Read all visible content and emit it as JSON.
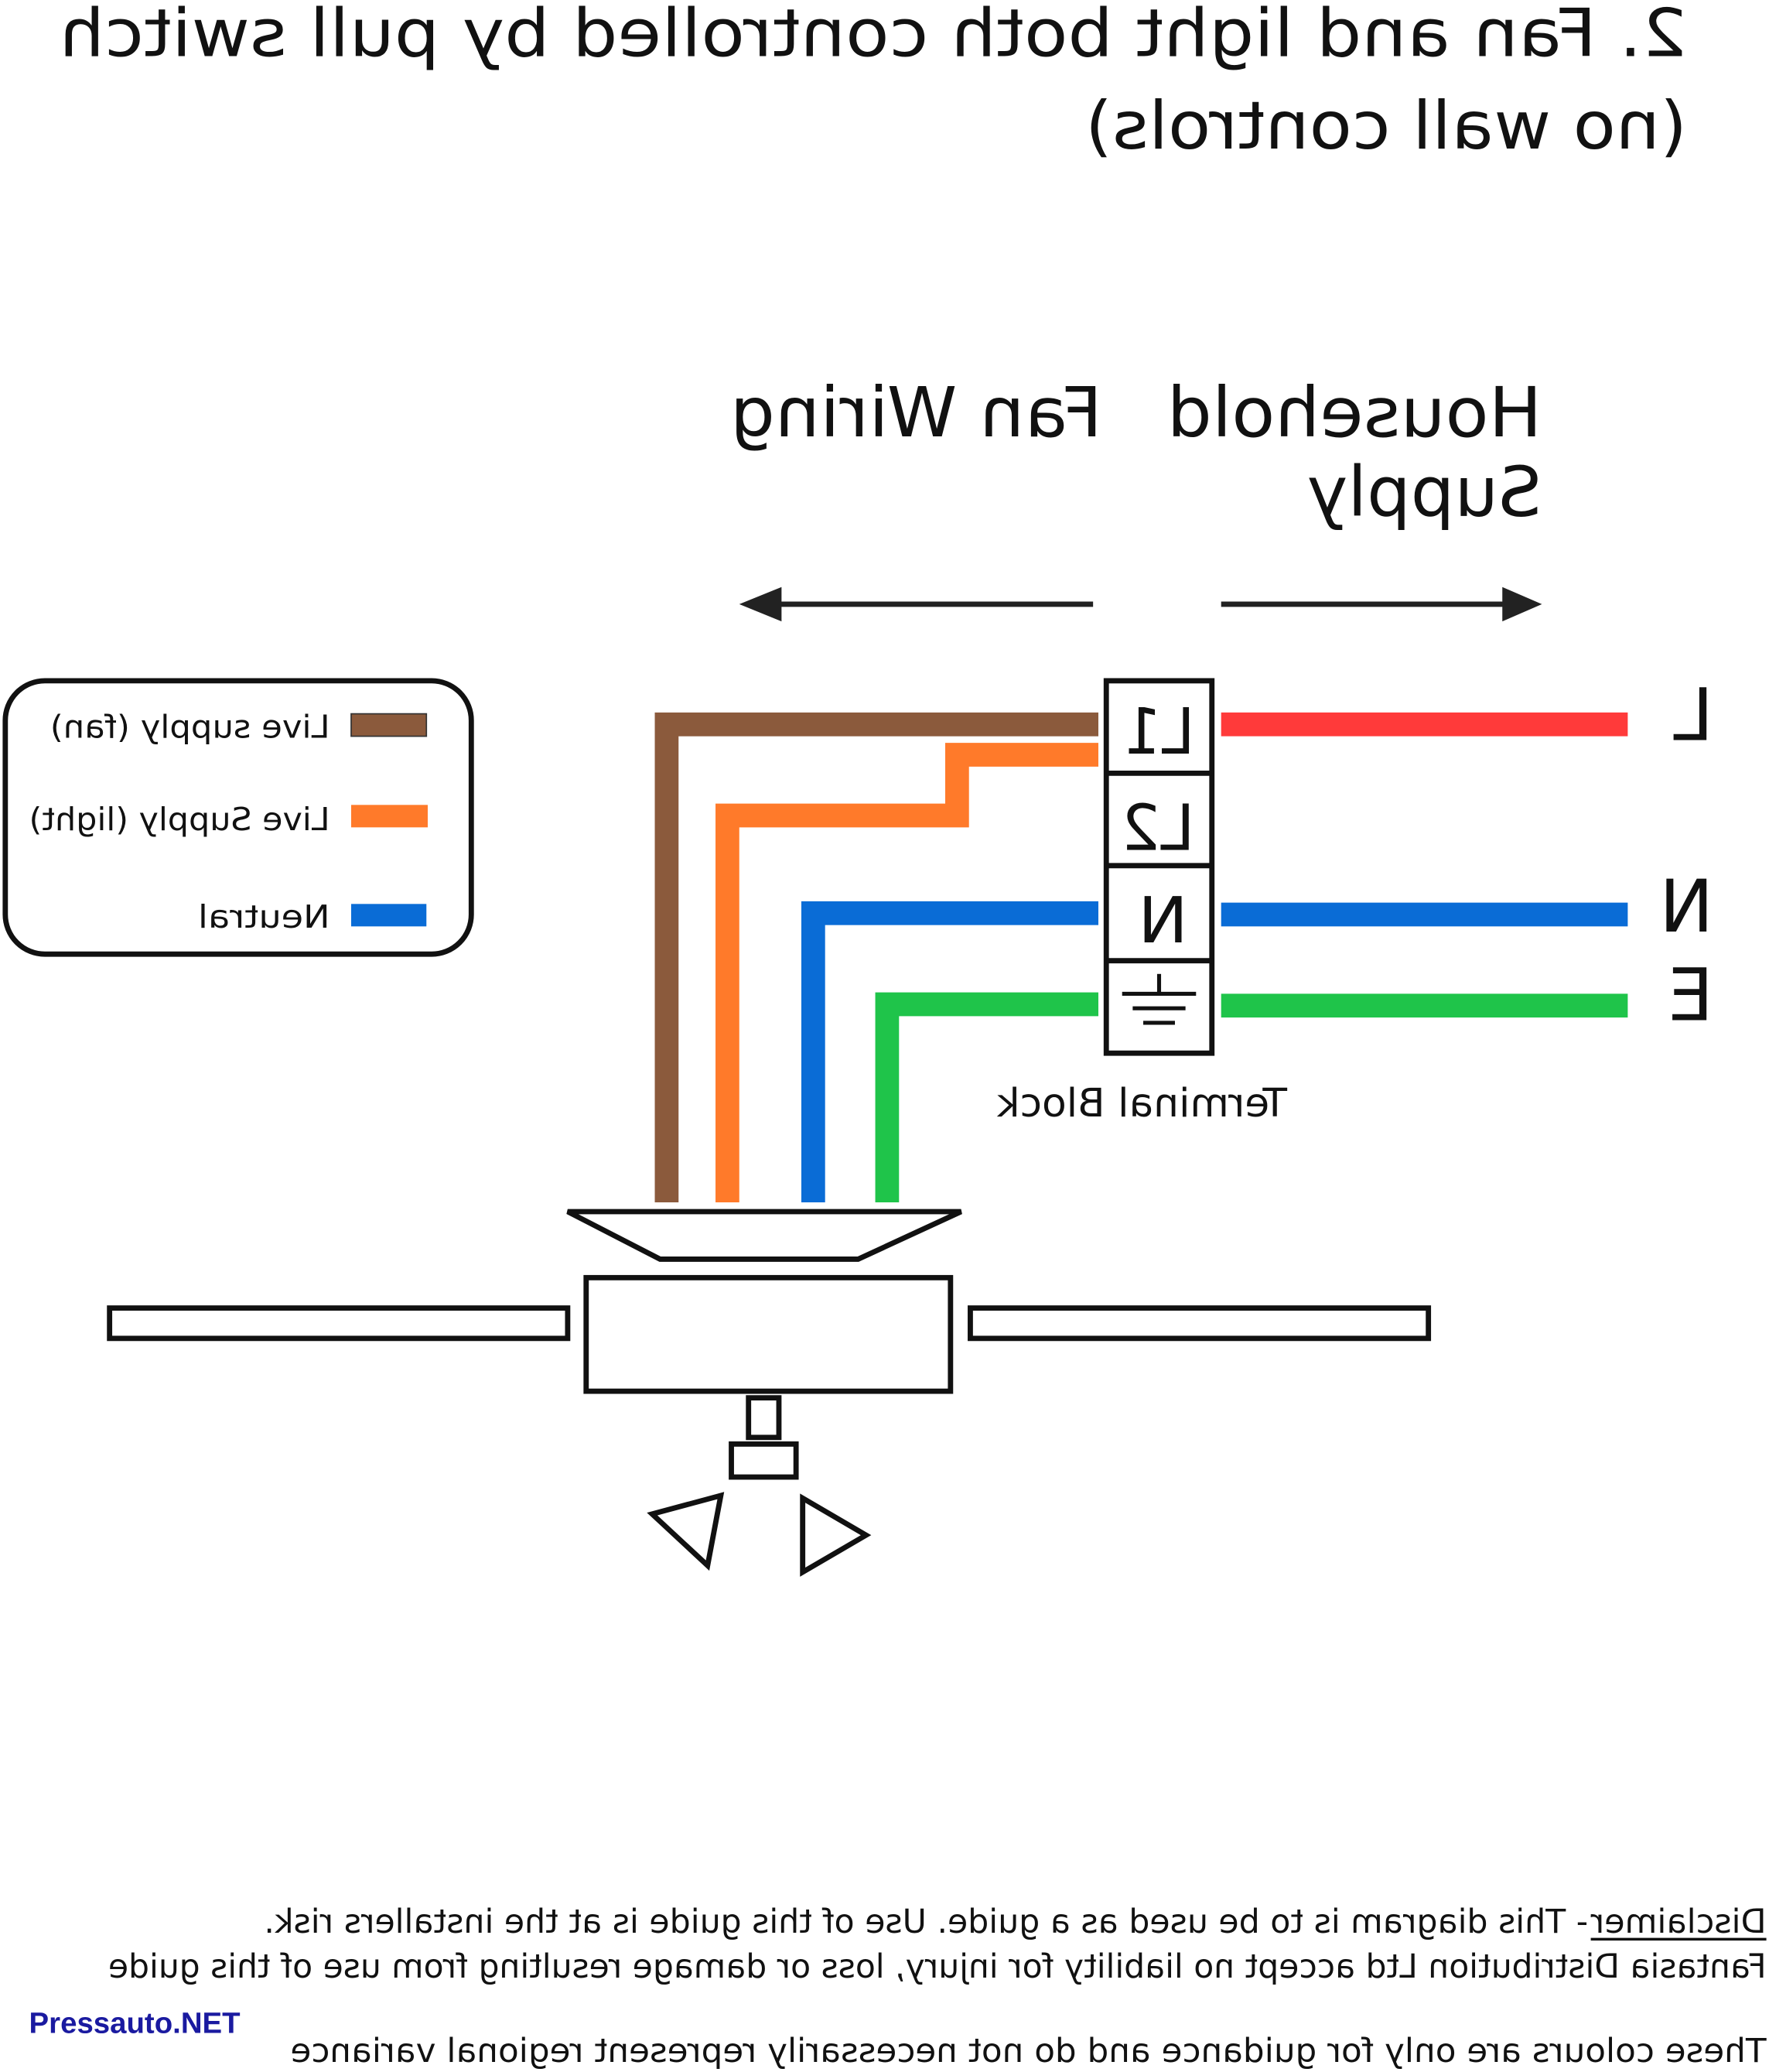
{
  "title": {
    "line1": "2. Fan and light both controlled by pull switch",
    "line2": "(no wall controls)"
  },
  "sections": {
    "fan_wiring": "Fan Wiring",
    "household_line1": "Household",
    "household_line2": "Supply"
  },
  "legend": {
    "items": [
      {
        "label": "Live supply (fan)",
        "color": "#8B5A3C"
      },
      {
        "label": "Live Supply (light)",
        "color": "#FF7A2A"
      },
      {
        "label": "Neutral",
        "color": "#0A6CD6"
      }
    ]
  },
  "terminal_block": {
    "label": "Terminal Block",
    "terminals": [
      "L1",
      "L2",
      "N"
    ],
    "earth_icon": "earth-ground-icon"
  },
  "supply_labels": [
    "L",
    "N",
    "E"
  ],
  "wire_colors": {
    "live": "#FF3A3A",
    "neutral": "#0A6CD6",
    "earth": "#1FC44A",
    "fan_live": "#8B5A3C",
    "light_live": "#FF7A2A"
  },
  "disclaimer": {
    "heading": "Disclaimer",
    "line1": " - This diagram is to be used as a guide.  Use of this guide is at the installers risk.",
    "line2": "Fantasia Distribution Ltd accept no liability for injury, loss or damage resulting from use of this guide",
    "line3": "These colours are only for guidance and do not necessarily represent regional variance"
  },
  "watermark": "Pressauto.NET"
}
